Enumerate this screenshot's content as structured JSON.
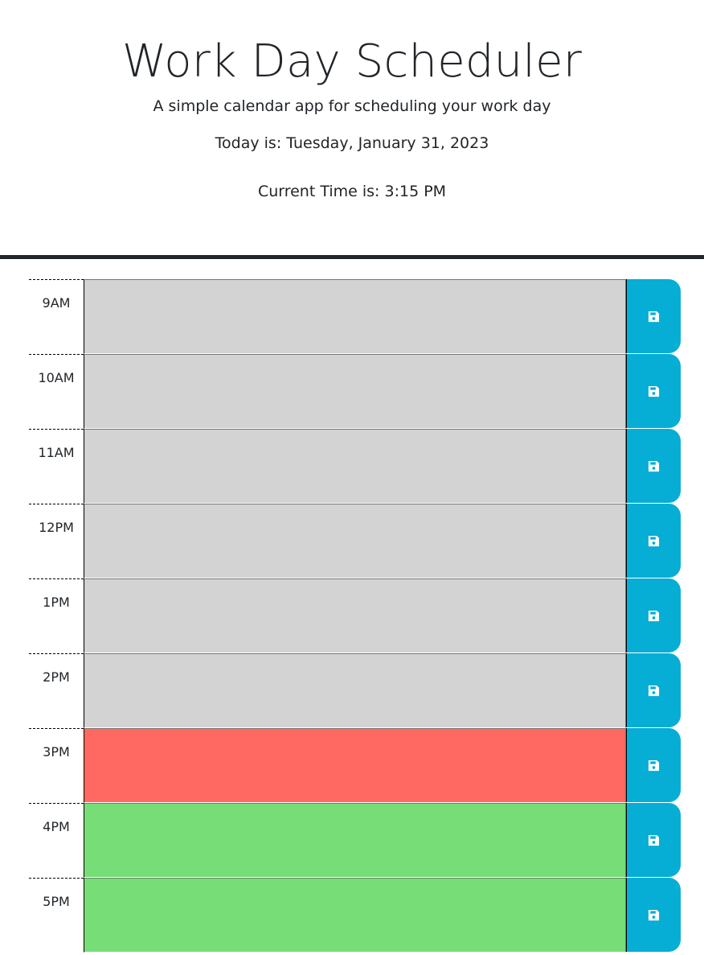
{
  "header": {
    "title": "Work Day Scheduler",
    "lead": "A simple calendar app for scheduling your work day",
    "today": "Today is: Tuesday, January 31, 2023",
    "current_time": "Current Time is: 3:15 PM"
  },
  "colors": {
    "past": "#d3d3d3",
    "present": "#ff6961",
    "future": "#77dd77",
    "save_button": "#06aed5"
  },
  "icons": {
    "save": "floppy-disk-icon"
  },
  "time_blocks": [
    {
      "hour": "9AM",
      "state": "past",
      "text": ""
    },
    {
      "hour": "10AM",
      "state": "past",
      "text": ""
    },
    {
      "hour": "11AM",
      "state": "past",
      "text": ""
    },
    {
      "hour": "12PM",
      "state": "past",
      "text": ""
    },
    {
      "hour": "1PM",
      "state": "past",
      "text": ""
    },
    {
      "hour": "2PM",
      "state": "past",
      "text": ""
    },
    {
      "hour": "3PM",
      "state": "present",
      "text": ""
    },
    {
      "hour": "4PM",
      "state": "future",
      "text": ""
    },
    {
      "hour": "5PM",
      "state": "future",
      "text": ""
    }
  ]
}
